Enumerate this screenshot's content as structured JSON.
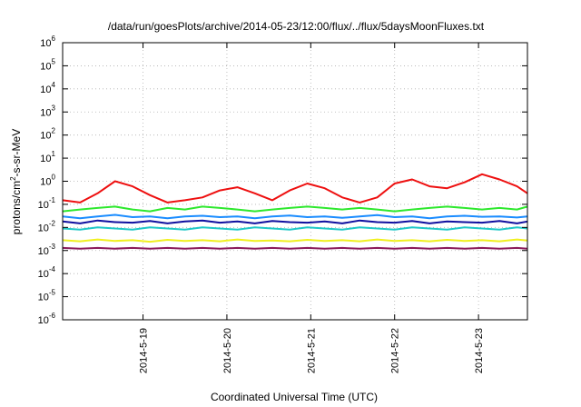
{
  "chart_data": {
    "type": "line",
    "title": "/data/run/goesPlots/archive/2014-05-23/12:00/flux/../flux/5daysMoonFluxes.txt",
    "xlabel": "Coordinated Universal Time (UTC)",
    "ylabel": "protons/cm2-s-sr-MeV",
    "ylabel_parts": {
      "pre": "protons/cm",
      "sup": "2",
      "post": "-s-sr-MeV"
    },
    "y_scale": "log",
    "ylim": [
      1e-06,
      1000000.0
    ],
    "y_ticks": [
      {
        "value": 1e-06,
        "base": "10",
        "exp": "-6"
      },
      {
        "value": 1e-05,
        "base": "10",
        "exp": "-5"
      },
      {
        "value": 0.0001,
        "base": "10",
        "exp": "-4"
      },
      {
        "value": 0.001,
        "base": "10",
        "exp": "-3"
      },
      {
        "value": 0.01,
        "base": "10",
        "exp": "-2"
      },
      {
        "value": 0.1,
        "base": "10",
        "exp": "-1"
      },
      {
        "value": 1,
        "base": "10",
        "exp": "0"
      },
      {
        "value": 10,
        "base": "10",
        "exp": "1"
      },
      {
        "value": 100,
        "base": "10",
        "exp": "2"
      },
      {
        "value": 1000,
        "base": "10",
        "exp": "3"
      },
      {
        "value": 10000,
        "base": "10",
        "exp": "4"
      },
      {
        "value": 100000,
        "base": "10",
        "exp": "5"
      },
      {
        "value": 1000000,
        "base": "10",
        "exp": "6"
      }
    ],
    "xlim": [
      "2014-05-18T01:00",
      "2014-05-23T14:00"
    ],
    "x_ticks": [
      {
        "t": "2014-05-19T00:00",
        "label": "2014-5-19"
      },
      {
        "t": "2014-05-20T00:00",
        "label": "2014-5-20"
      },
      {
        "t": "2014-05-21T00:00",
        "label": "2014-5-21"
      },
      {
        "t": "2014-05-22T00:00",
        "label": "2014-5-22"
      },
      {
        "t": "2014-05-23T00:00",
        "label": "2014-5-23"
      }
    ],
    "grid": true,
    "x": [
      "2014-05-18T01:00",
      "2014-05-18T06:00",
      "2014-05-18T11:00",
      "2014-05-18T16:00",
      "2014-05-18T21:00",
      "2014-05-19T02:00",
      "2014-05-19T07:00",
      "2014-05-19T12:00",
      "2014-05-19T17:00",
      "2014-05-19T22:00",
      "2014-05-20T03:00",
      "2014-05-20T08:00",
      "2014-05-20T13:00",
      "2014-05-20T18:00",
      "2014-05-20T23:00",
      "2014-05-21T04:00",
      "2014-05-21T09:00",
      "2014-05-21T14:00",
      "2014-05-21T19:00",
      "2014-05-22T00:00",
      "2014-05-22T05:00",
      "2014-05-22T10:00",
      "2014-05-22T15:00",
      "2014-05-22T20:00",
      "2014-05-23T01:00",
      "2014-05-23T06:00",
      "2014-05-23T11:00",
      "2014-05-23T14:00"
    ],
    "series": [
      {
        "color": "#ee1010",
        "values": [
          0.15,
          0.12,
          0.3,
          1.0,
          0.6,
          0.25,
          0.12,
          0.15,
          0.2,
          0.4,
          0.55,
          0.3,
          0.15,
          0.4,
          0.8,
          0.5,
          0.2,
          0.12,
          0.2,
          0.8,
          1.2,
          0.6,
          0.5,
          0.9,
          2.0,
          1.2,
          0.6,
          0.3
        ]
      },
      {
        "color": "#2ee82e",
        "values": [
          0.05,
          0.06,
          0.07,
          0.08,
          0.06,
          0.05,
          0.07,
          0.06,
          0.08,
          0.07,
          0.06,
          0.05,
          0.06,
          0.07,
          0.08,
          0.07,
          0.06,
          0.07,
          0.06,
          0.05,
          0.06,
          0.07,
          0.08,
          0.07,
          0.06,
          0.07,
          0.06,
          0.08
        ]
      },
      {
        "color": "#1a8cff",
        "values": [
          0.03,
          0.025,
          0.03,
          0.035,
          0.028,
          0.03,
          0.025,
          0.03,
          0.032,
          0.028,
          0.03,
          0.025,
          0.03,
          0.033,
          0.028,
          0.03,
          0.026,
          0.03,
          0.034,
          0.028,
          0.03,
          0.025,
          0.03,
          0.032,
          0.029,
          0.03,
          0.027,
          0.03
        ]
      },
      {
        "color": "#1010a0",
        "values": [
          0.018,
          0.015,
          0.02,
          0.017,
          0.016,
          0.019,
          0.015,
          0.018,
          0.02,
          0.016,
          0.018,
          0.015,
          0.019,
          0.017,
          0.016,
          0.018,
          0.015,
          0.02,
          0.017,
          0.016,
          0.019,
          0.015,
          0.018,
          0.017,
          0.016,
          0.019,
          0.015,
          0.018
        ]
      },
      {
        "color": "#20c8c8",
        "values": [
          0.009,
          0.008,
          0.01,
          0.009,
          0.008,
          0.01,
          0.009,
          0.008,
          0.01,
          0.009,
          0.008,
          0.01,
          0.009,
          0.008,
          0.01,
          0.009,
          0.008,
          0.01,
          0.009,
          0.008,
          0.01,
          0.009,
          0.008,
          0.01,
          0.009,
          0.008,
          0.01,
          0.009
        ]
      },
      {
        "color": "#f0f020",
        "values": [
          0.0028,
          0.0025,
          0.003,
          0.0026,
          0.0028,
          0.0024,
          0.0029,
          0.0026,
          0.0028,
          0.0025,
          0.003,
          0.0026,
          0.0027,
          0.0025,
          0.0029,
          0.0026,
          0.0028,
          0.0025,
          0.003,
          0.0026,
          0.0028,
          0.0025,
          0.0029,
          0.0026,
          0.0028,
          0.0025,
          0.003,
          0.0027
        ]
      },
      {
        "color": "#8b1a5a",
        "values": [
          0.0013,
          0.0012,
          0.0013,
          0.0012,
          0.0013,
          0.0012,
          0.0013,
          0.0012,
          0.0013,
          0.0012,
          0.0013,
          0.0012,
          0.0013,
          0.0012,
          0.0013,
          0.0012,
          0.0013,
          0.0012,
          0.0013,
          0.0012,
          0.0013,
          0.0012,
          0.0013,
          0.0012,
          0.0013,
          0.0012,
          0.0013,
          0.0012
        ]
      }
    ]
  }
}
